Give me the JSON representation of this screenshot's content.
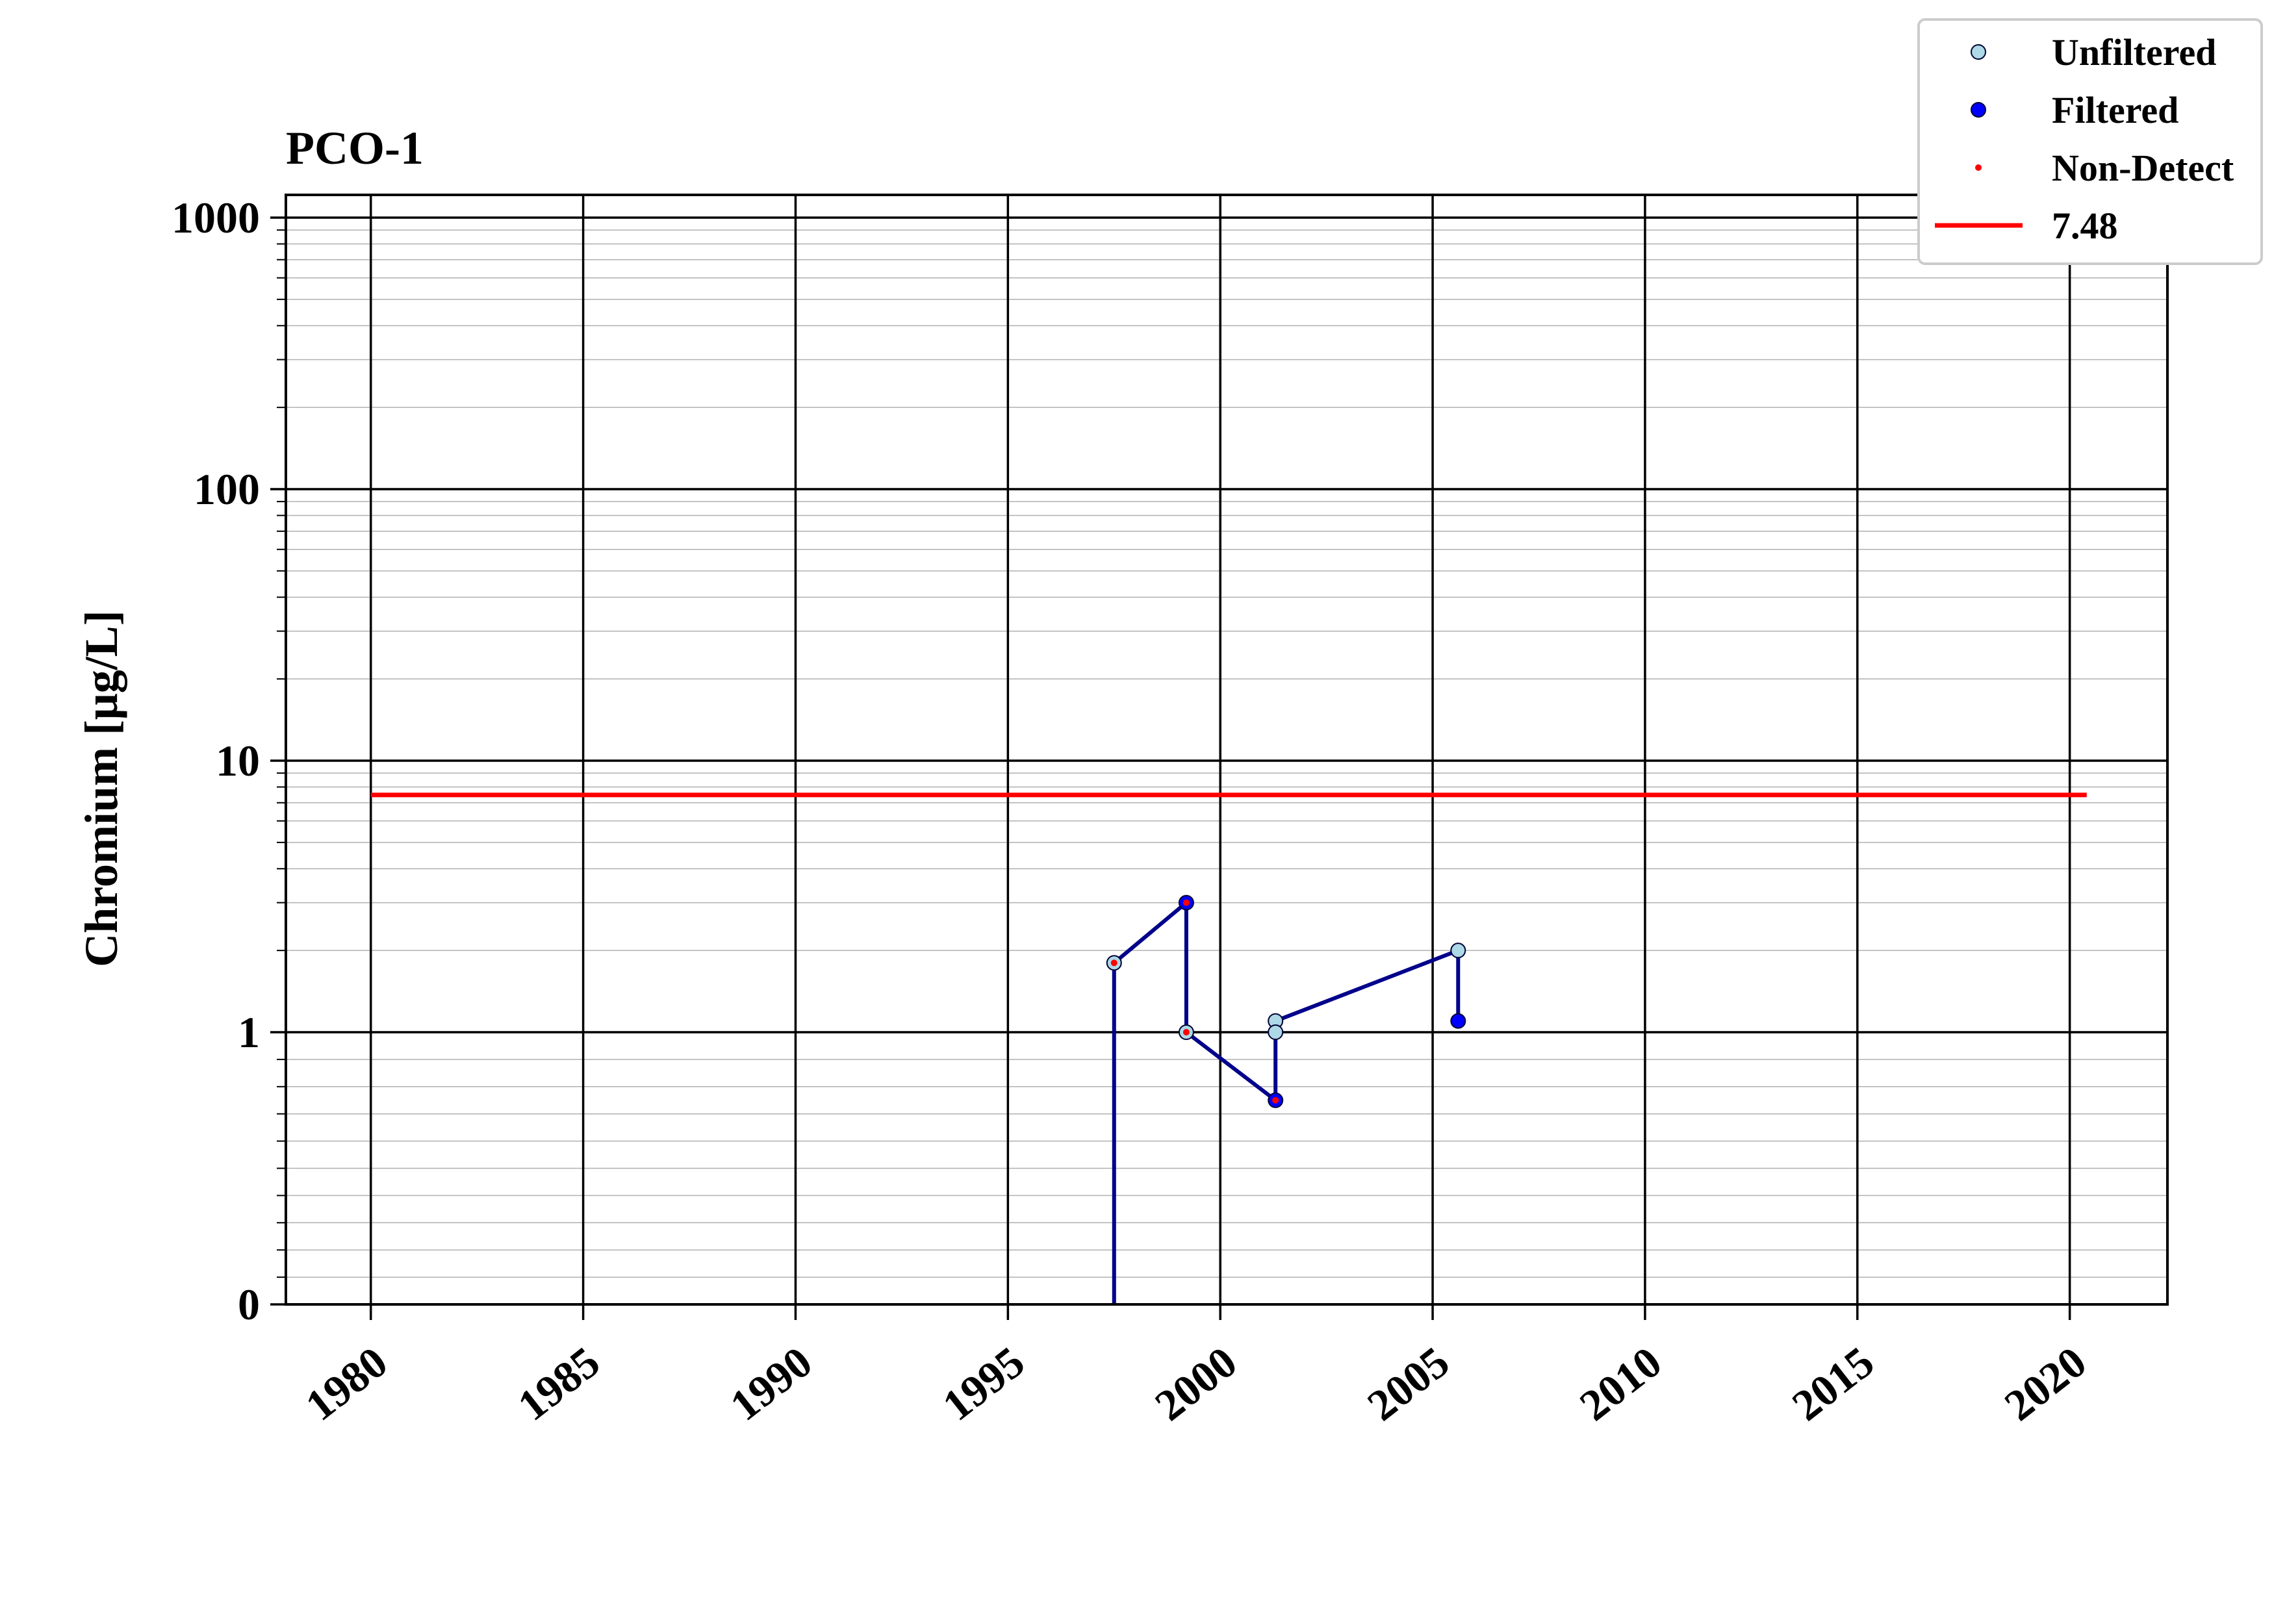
{
  "chart_data": {
    "type": "line",
    "title": "PCO-1",
    "xlabel": "",
    "ylabel": "Chromium [μg/L]",
    "y_scale": "symlog",
    "ylim": [
      0,
      1000
    ],
    "xlim": [
      1978,
      2022.3
    ],
    "y_ticks": [
      {
        "value": 0,
        "label": "0"
      },
      {
        "value": 1,
        "label": "1"
      },
      {
        "value": 10,
        "label": "10"
      },
      {
        "value": 100,
        "label": "100"
      },
      {
        "value": 1000,
        "label": "1000"
      }
    ],
    "x_ticks": [
      {
        "value": 1980,
        "label": "1980"
      },
      {
        "value": 1985,
        "label": "1985"
      },
      {
        "value": 1990,
        "label": "1990"
      },
      {
        "value": 1995,
        "label": "1995"
      },
      {
        "value": 2000,
        "label": "2000"
      },
      {
        "value": 2005,
        "label": "2005"
      },
      {
        "value": 2010,
        "label": "2010"
      },
      {
        "value": 2015,
        "label": "2015"
      },
      {
        "value": 2020,
        "label": "2020"
      }
    ],
    "grid": true,
    "legend_position": "top-right",
    "series": [
      {
        "name": "Unfiltered",
        "kind": "marker",
        "color": "#add8e6",
        "edge": "#000033",
        "points": [
          [
            2001.3,
            1.1
          ],
          [
            2001.3,
            1.0
          ],
          [
            2005.6,
            2.0
          ]
        ]
      },
      {
        "name": "Filtered",
        "kind": "marker",
        "color": "#0000ff",
        "edge": "#000033",
        "points": [
          [
            1999.2,
            3.0
          ],
          [
            2001.3,
            0.75
          ],
          [
            2005.6,
            1.1
          ]
        ]
      },
      {
        "name": "Non-Detect",
        "kind": "dot",
        "color": "#ff0000",
        "points": [
          [
            1997.5,
            1.8
          ],
          [
            1999.2,
            3.0
          ],
          [
            1999.2,
            1.0
          ],
          [
            2001.3,
            0.75
          ]
        ]
      },
      {
        "name": "7.48",
        "kind": "hline",
        "color": "#ff0000",
        "value": 7.48,
        "x_range": [
          1980,
          2020.4
        ]
      }
    ],
    "connector": {
      "color": "#00008b",
      "points": [
        [
          1997.5,
          0
        ],
        [
          1997.5,
          1.8
        ],
        [
          1999.2,
          3.0
        ],
        [
          1999.2,
          1.0
        ],
        [
          2001.3,
          0.75
        ],
        [
          2001.3,
          1.0
        ],
        [
          2001.3,
          1.1
        ],
        [
          2005.6,
          2.0
        ],
        [
          2005.6,
          1.1
        ]
      ]
    },
    "markers_unfiltered_points": [
      [
        1997.5,
        1.8
      ],
      [
        1999.2,
        1.0
      ]
    ]
  }
}
